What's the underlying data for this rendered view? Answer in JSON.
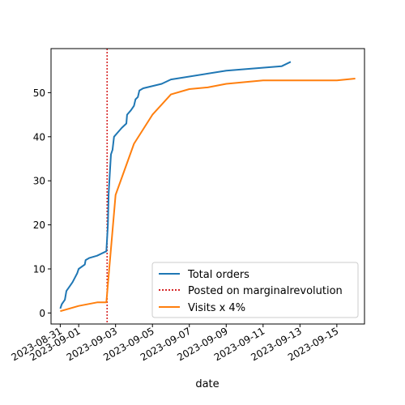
{
  "chart_data": {
    "type": "line",
    "title": "",
    "xlabel": "date",
    "ylabel": "",
    "x_axis_type": "date",
    "xlim": [
      "2023-08-30T12:00",
      "2023-09-16T12:00"
    ],
    "ylim": [
      -2.5,
      60
    ],
    "xticks": [
      "2023-08-31",
      "2023-09-01",
      "2023-09-03",
      "2023-09-05",
      "2023-09-07",
      "2023-09-09",
      "2023-09-11",
      "2023-09-13",
      "2023-09-15"
    ],
    "yticks": [
      0,
      10,
      20,
      30,
      40,
      50
    ],
    "grid": false,
    "legend_position": "lower-right",
    "vline": {
      "x": "2023-09-02T13:00",
      "label": "Posted on marginalrevolution",
      "color": "#d62728",
      "style": "dotted"
    },
    "series": [
      {
        "name": "Total orders",
        "color": "#1f77b4",
        "points": [
          [
            "2023-08-31T00:00",
            1
          ],
          [
            "2023-08-31T02:00",
            2
          ],
          [
            "2023-08-31T06:00",
            3
          ],
          [
            "2023-08-31T08:00",
            5
          ],
          [
            "2023-08-31T12:00",
            6
          ],
          [
            "2023-08-31T16:00",
            7
          ],
          [
            "2023-08-31T19:00",
            8
          ],
          [
            "2023-08-31T22:00",
            9
          ],
          [
            "2023-09-01T00:00",
            10
          ],
          [
            "2023-09-01T08:00",
            11
          ],
          [
            "2023-09-01T09:00",
            12
          ],
          [
            "2023-09-01T14:00",
            12.5
          ],
          [
            "2023-09-02T00:00",
            13
          ],
          [
            "2023-09-02T12:00",
            14
          ],
          [
            "2023-09-02T14:00",
            20
          ],
          [
            "2023-09-02T15:00",
            27
          ],
          [
            "2023-09-02T17:00",
            33
          ],
          [
            "2023-09-02T18:00",
            36
          ],
          [
            "2023-09-02T20:00",
            37
          ],
          [
            "2023-09-02T22:00",
            40
          ],
          [
            "2023-09-03T03:00",
            41
          ],
          [
            "2023-09-03T08:00",
            42
          ],
          [
            "2023-09-03T14:00",
            43
          ],
          [
            "2023-09-03T15:00",
            45
          ],
          [
            "2023-09-03T20:00",
            46
          ],
          [
            "2023-09-04T00:00",
            47
          ],
          [
            "2023-09-04T02:00",
            48.5
          ],
          [
            "2023-09-04T05:00",
            49
          ],
          [
            "2023-09-04T07:00",
            50.5
          ],
          [
            "2023-09-04T12:00",
            51
          ],
          [
            "2023-09-05T12:00",
            52
          ],
          [
            "2023-09-06T00:00",
            53
          ],
          [
            "2023-09-09T00:00",
            55
          ],
          [
            "2023-09-12T00:00",
            56
          ],
          [
            "2023-09-12T12:00",
            57
          ]
        ]
      },
      {
        "name": "Visits x 4%",
        "color": "#ff7f0e",
        "points": [
          [
            "2023-08-31T00:00",
            0.4
          ],
          [
            "2023-09-01T00:00",
            1.6
          ],
          [
            "2023-09-02T00:00",
            2.4
          ],
          [
            "2023-09-02T12:00",
            2.4
          ],
          [
            "2023-09-03T00:00",
            26.8
          ],
          [
            "2023-09-04T00:00",
            38.4
          ],
          [
            "2023-09-05T00:00",
            45
          ],
          [
            "2023-09-06T00:00",
            49.6
          ],
          [
            "2023-09-07T00:00",
            50.8
          ],
          [
            "2023-09-08T00:00",
            51.2
          ],
          [
            "2023-09-09T00:00",
            52
          ],
          [
            "2023-09-11T00:00",
            52.8
          ],
          [
            "2023-09-15T00:00",
            52.8
          ],
          [
            "2023-09-16T00:00",
            53.2
          ]
        ]
      }
    ]
  }
}
